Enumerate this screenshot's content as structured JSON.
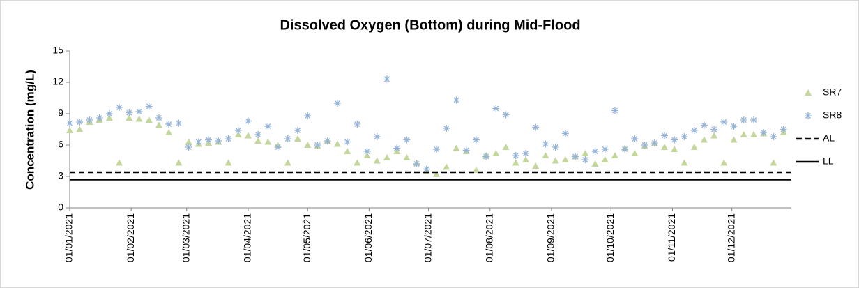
{
  "chart_data": {
    "type": "scatter",
    "title": "Dissolved Oxygen (Bottom) during Mid-Flood",
    "y_label": "Concentration (mg/L)",
    "x": [
      "01/01/2021",
      "06/01/2021",
      "11/01/2021",
      "16/01/2021",
      "21/01/2021",
      "26/01/2021",
      "31/01/2021",
      "05/02/2021",
      "10/02/2021",
      "15/02/2021",
      "20/02/2021",
      "25/02/2021",
      "02/03/2021",
      "07/03/2021",
      "12/03/2021",
      "17/03/2021",
      "22/03/2021",
      "27/03/2021",
      "01/04/2021",
      "06/04/2021",
      "11/04/2021",
      "16/04/2021",
      "21/04/2021",
      "26/04/2021",
      "01/05/2021",
      "06/05/2021",
      "11/05/2021",
      "16/05/2021",
      "21/05/2021",
      "26/05/2021",
      "31/05/2021",
      "05/06/2021",
      "10/06/2021",
      "15/06/2021",
      "20/06/2021",
      "25/06/2021",
      "30/06/2021",
      "05/07/2021",
      "10/07/2021",
      "15/07/2021",
      "20/07/2021",
      "25/07/2021",
      "30/07/2021",
      "04/08/2021",
      "09/08/2021",
      "14/08/2021",
      "19/08/2021",
      "24/08/2021",
      "29/08/2021",
      "03/09/2021",
      "08/09/2021",
      "13/09/2021",
      "18/09/2021",
      "23/09/2021",
      "28/09/2021",
      "03/10/2021",
      "08/10/2021",
      "13/10/2021",
      "18/10/2021",
      "23/10/2021",
      "28/10/2021",
      "02/11/2021",
      "07/11/2021",
      "12/11/2021",
      "17/11/2021",
      "22/11/2021",
      "27/11/2021",
      "02/12/2021",
      "07/12/2021",
      "12/12/2021",
      "17/12/2021",
      "22/12/2021",
      "27/12/2021"
    ],
    "series": [
      {
        "name": "SR7",
        "color": "#c3d69b",
        "marker": "triangle",
        "values": [
          7.4,
          7.5,
          8.2,
          8.4,
          8.6,
          4.3,
          8.6,
          8.5,
          8.4,
          7.9,
          7.2,
          4.3,
          6.3,
          6.1,
          6.2,
          6.3,
          4.3,
          7.0,
          6.9,
          6.4,
          6.3,
          6.0,
          4.3,
          6.6,
          6.0,
          5.9,
          6.4,
          6.1,
          5.4,
          4.3,
          5.0,
          4.5,
          4.8,
          5.4,
          4.8,
          4.3,
          3.5,
          3.2,
          3.9,
          5.7,
          5.4,
          3.6,
          5.0,
          5.2,
          5.8,
          4.3,
          4.6,
          4.0,
          5.0,
          4.5,
          4.6,
          4.9,
          5.2,
          4.2,
          4.6,
          5.0,
          5.7,
          5.2,
          5.9,
          6.2,
          5.8,
          5.6,
          4.3,
          5.8,
          6.5,
          6.9,
          4.3,
          6.5,
          7.0,
          7.0,
          7.1,
          4.3,
          7.2
        ]
      },
      {
        "name": "SR8",
        "color": "#95b3d7",
        "marker": "star",
        "values": [
          8.1,
          8.2,
          8.4,
          8.6,
          9.0,
          9.6,
          9.1,
          9.2,
          9.7,
          8.6,
          8.0,
          8.1,
          5.8,
          6.3,
          6.5,
          6.4,
          6.6,
          7.4,
          8.3,
          7.0,
          7.8,
          5.8,
          6.6,
          7.4,
          8.8,
          6.0,
          6.4,
          10.0,
          6.3,
          8.0,
          5.4,
          6.8,
          12.3,
          5.7,
          6.5,
          4.2,
          3.7,
          5.6,
          7.6,
          10.3,
          5.5,
          6.5,
          4.9,
          9.5,
          8.9,
          5.0,
          5.2,
          7.7,
          6.1,
          5.8,
          7.1,
          4.9,
          4.6,
          5.4,
          5.6,
          9.3,
          5.6,
          6.6,
          6.0,
          6.2,
          6.9,
          6.5,
          6.8,
          7.4,
          7.9,
          7.5,
          8.2,
          7.8,
          8.4,
          8.4,
          7.2,
          6.8,
          7.5
        ]
      },
      {
        "name": "AL",
        "color": "#000000",
        "dash": true,
        "value": 3.4
      },
      {
        "name": "LL",
        "color": "#000000",
        "dash": false,
        "value": 2.7
      }
    ],
    "xlim": [
      "01/01/2021",
      "31/12/2021"
    ],
    "xticks": [
      "01/01/2021",
      "01/02/2021",
      "01/03/2021",
      "01/04/2021",
      "01/05/2021",
      "01/06/2021",
      "01/07/2021",
      "01/08/2021",
      "01/09/2021",
      "01/10/2021",
      "01/11/2021",
      "01/12/2021"
    ],
    "ylim": [
      0,
      15
    ],
    "yticks": [
      0,
      3,
      6,
      9,
      12,
      15
    ],
    "legend": "right"
  }
}
